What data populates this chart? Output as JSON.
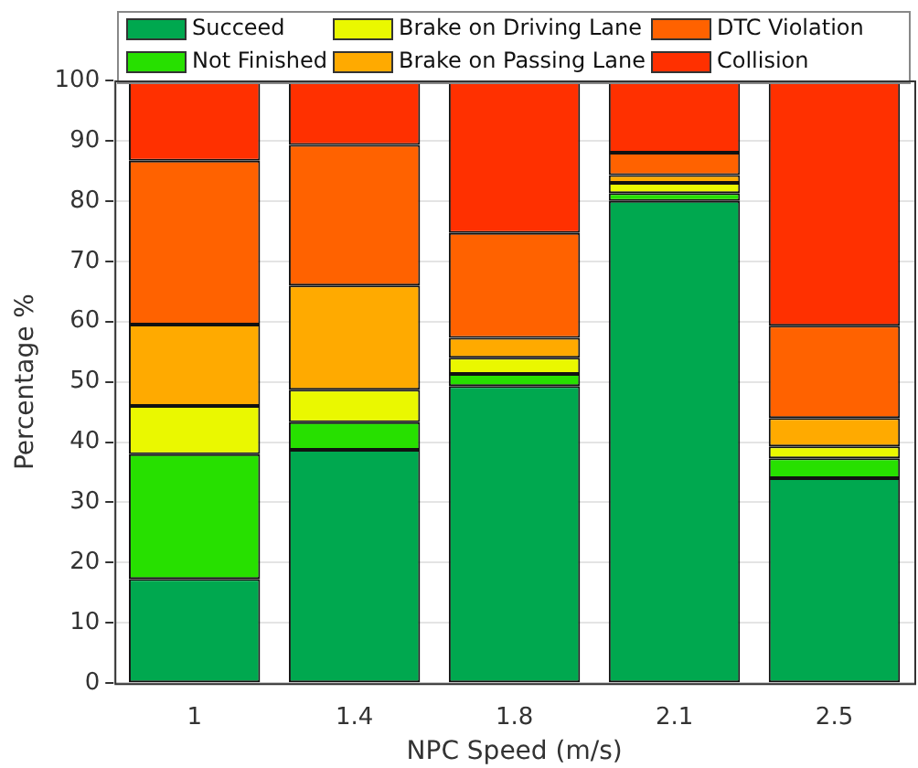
{
  "chart_data": {
    "type": "bar",
    "stacked": true,
    "xlabel": "NPC Speed (m/s)",
    "ylabel": "Percentage %",
    "categories": [
      "1",
      "1.4",
      "1.8",
      "2.1",
      "2.5"
    ],
    "series": [
      {
        "name": "Succeed",
        "color": "#00a84f",
        "values": [
          17.3,
          38.7,
          49.3,
          80,
          34
        ]
      },
      {
        "name": "Not Finished",
        "color": "#27e000",
        "values": [
          20.7,
          4.6,
          2,
          1.3,
          3.3
        ]
      },
      {
        "name": "Brake on Driving Lane",
        "color": "#eaf800",
        "values": [
          8,
          5.4,
          2.7,
          1.7,
          2
        ]
      },
      {
        "name": "Brake on Passing Lane",
        "color": "#ffaa00",
        "values": [
          13.5,
          17.3,
          3.3,
          1.3,
          4.7
        ]
      },
      {
        "name": "DTC Violation",
        "color": "#ff6200",
        "values": [
          27.2,
          23.3,
          17.4,
          3.7,
          15.3
        ]
      },
      {
        "name": "Collision",
        "color": "#ff3000",
        "values": [
          13.3,
          10.7,
          25.3,
          12,
          40.7
        ]
      }
    ],
    "ylim": [
      0,
      100
    ],
    "yticks": [
      0,
      10,
      20,
      30,
      40,
      50,
      60,
      70,
      80,
      90,
      100
    ],
    "grid": "y",
    "legend": "top"
  }
}
